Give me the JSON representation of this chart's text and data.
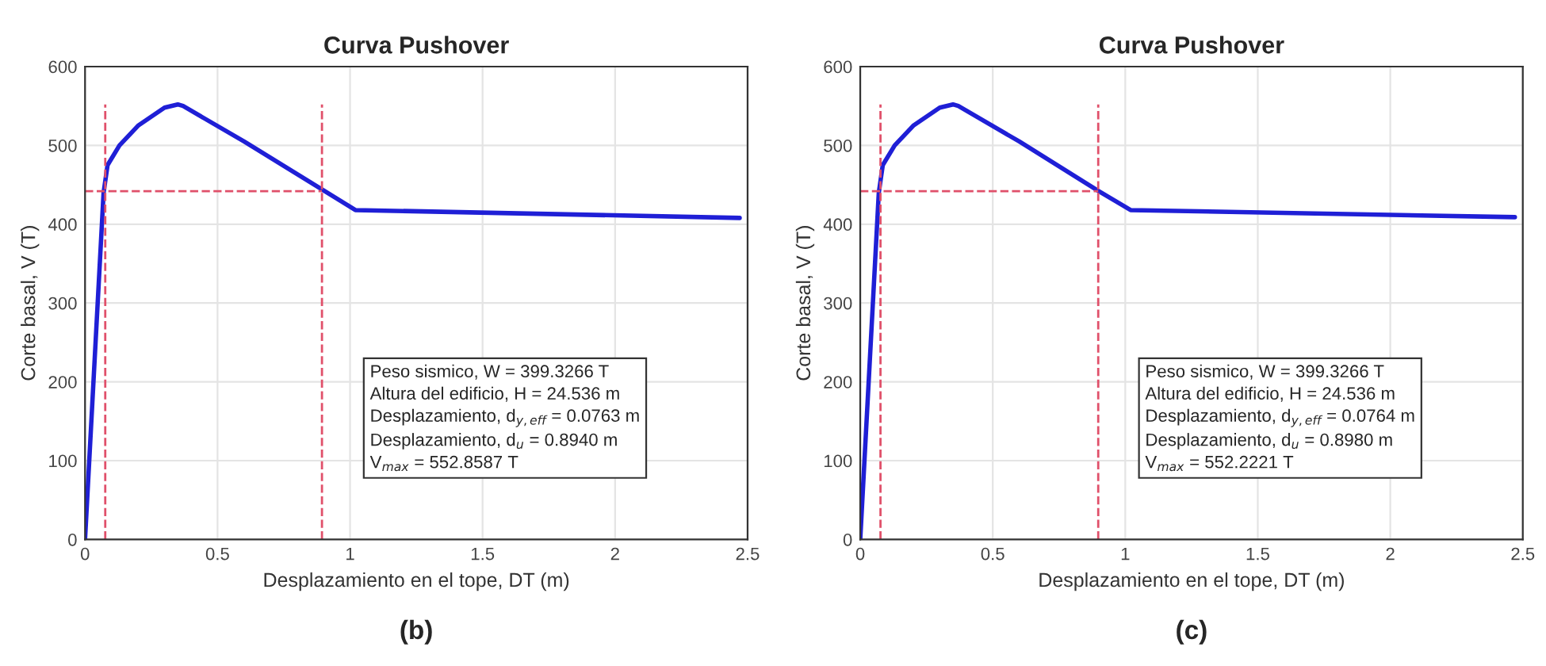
{
  "chart_data": [
    {
      "type": "line",
      "title": "Curva Pushover",
      "xlabel": "Desplazamiento en el tope, DT (m)",
      "ylabel": "Corte basal, V (T)",
      "xlim": [
        0,
        2.5
      ],
      "xticks": [
        0,
        0.5,
        1,
        1.5,
        2,
        2.5
      ],
      "ylim": [
        0,
        600
      ],
      "yticks": [
        0,
        100,
        200,
        300,
        400,
        500,
        600
      ],
      "grid": true,
      "marker": "none",
      "series": [
        {
          "x": [
            0,
            0.07,
            0.085,
            0.13,
            0.2,
            0.3,
            0.35,
            0.37,
            0.6,
            0.9,
            1.02,
            2.47
          ],
          "values": [
            0,
            440,
            475,
            500,
            525,
            548,
            552,
            550,
            505,
            443,
            418,
            408
          ],
          "color": "#1f1fd6",
          "line_style": "solid"
        },
        {
          "x": [
            0.0763,
            0.0763
          ],
          "values": [
            0,
            552
          ],
          "color": "#e0506a",
          "line_style": "dashed"
        },
        {
          "x": [
            0.894,
            0.894
          ],
          "values": [
            0,
            552
          ],
          "color": "#e0506a",
          "line_style": "dashed"
        },
        {
          "x": [
            0,
            0.894
          ],
          "values": [
            442,
            442
          ],
          "color": "#e0506a",
          "line_style": "dashed"
        }
      ],
      "annotations": [
        "Peso sismico, W = 399.3266 T",
        "Altura del edificio, H = 24.536 m",
        "Desplazamiento, d$_{y,eff}$ = 0.0763 m",
        "Desplazamiento, d$_{u}$ = 0.8940 m",
        "V$_{max}$ = 552.8587 T",
        "(b)"
      ]
    },
    {
      "type": "line",
      "title": "Curva Pushover",
      "xlabel": "Desplazamiento en el tope, DT (m)",
      "ylabel": "Corte basal, V (T)",
      "xlim": [
        0,
        2.5
      ],
      "xticks": [
        0,
        0.5,
        1,
        1.5,
        2,
        2.5
      ],
      "ylim": [
        0,
        600
      ],
      "yticks": [
        0,
        100,
        200,
        300,
        400,
        500,
        600
      ],
      "grid": true,
      "marker": "none",
      "series": [
        {
          "x": [
            0,
            0.07,
            0.085,
            0.13,
            0.2,
            0.3,
            0.35,
            0.37,
            0.6,
            0.9,
            1.02,
            2.47
          ],
          "values": [
            0,
            440,
            475,
            500,
            525,
            548,
            552,
            550,
            505,
            442,
            418,
            409
          ],
          "color": "#1f1fd6",
          "line_style": "solid"
        },
        {
          "x": [
            0.0764,
            0.0764
          ],
          "values": [
            0,
            552
          ],
          "color": "#e0506a",
          "line_style": "dashed"
        },
        {
          "x": [
            0.898,
            0.898
          ],
          "values": [
            0,
            552
          ],
          "color": "#e0506a",
          "line_style": "dashed"
        },
        {
          "x": [
            0,
            0.898
          ],
          "values": [
            442,
            442
          ],
          "color": "#e0506a",
          "line_style": "dashed"
        }
      ],
      "annotations": [
        "Peso sismico, W = 399.3266 T",
        "Altura del edificio, H = 24.536 m",
        "Desplazamiento, d$_{y,eff}$ = 0.0764 m",
        "Desplazamiento, d$_{u}$ = 0.8980 m",
        "V$_{max}$ = 552.2221 T",
        "(c)"
      ]
    }
  ]
}
